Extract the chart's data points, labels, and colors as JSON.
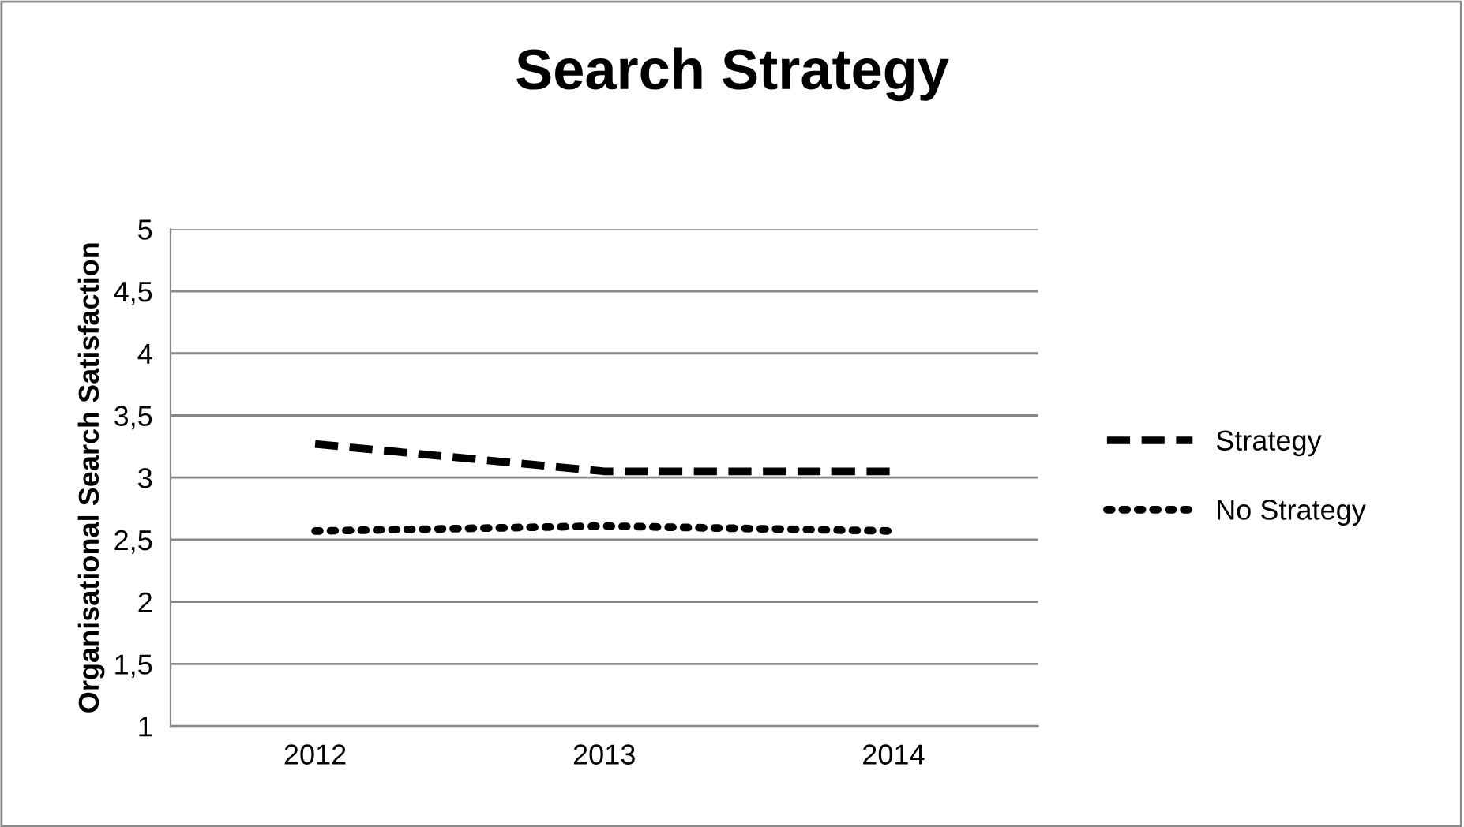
{
  "chart_data": {
    "type": "line",
    "title": "Search Strategy",
    "ylabel": "Organisational Search Satisfaction",
    "categories": [
      "2012",
      "2013",
      "2014"
    ],
    "series": [
      {
        "name": "Strategy",
        "color": "#000000",
        "line_style": "dashed",
        "values": [
          3.27,
          3.05,
          3.05
        ]
      },
      {
        "name": "No Strategy",
        "color": "#000000",
        "line_style": "dotted",
        "values": [
          2.57,
          2.61,
          2.57
        ]
      }
    ],
    "ylim": [
      1,
      5
    ],
    "yticks": [
      1,
      {
        "value": 1.5,
        "label": "1,5"
      },
      2,
      {
        "value": 2.5,
        "label": "2,5"
      },
      3,
      {
        "value": 3.5,
        "label": "3,5"
      },
      4,
      {
        "value": 4.5,
        "label": "4,5"
      },
      5
    ],
    "grid": "y",
    "legend": "right",
    "marker": "none"
  }
}
